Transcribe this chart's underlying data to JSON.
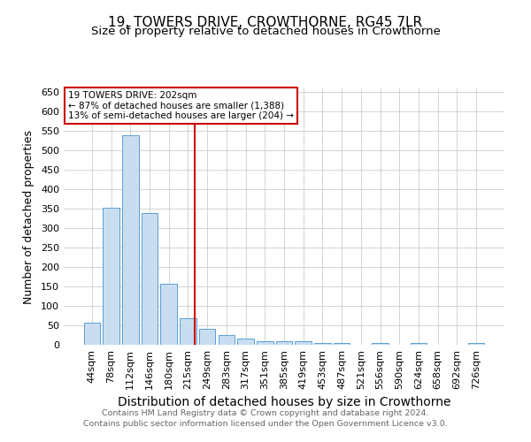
{
  "title": "19, TOWERS DRIVE, CROWTHORNE, RG45 7LR",
  "subtitle": "Size of property relative to detached houses in Crowthorne",
  "xlabel": "Distribution of detached houses by size in Crowthorne",
  "ylabel": "Number of detached properties",
  "bar_labels": [
    "44sqm",
    "78sqm",
    "112sqm",
    "146sqm",
    "180sqm",
    "215sqm",
    "249sqm",
    "283sqm",
    "317sqm",
    "351sqm",
    "385sqm",
    "419sqm",
    "453sqm",
    "487sqm",
    "521sqm",
    "556sqm",
    "590sqm",
    "624sqm",
    "658sqm",
    "692sqm",
    "726sqm"
  ],
  "bar_values": [
    58,
    352,
    540,
    338,
    157,
    68,
    41,
    24,
    17,
    8,
    8,
    10,
    5,
    4,
    0,
    4,
    0,
    5,
    0,
    0,
    5
  ],
  "bar_color": "#c9ddf0",
  "bar_edge_color": "#5a9fd4",
  "vline_color": "#cc0000",
  "vline_bin_index": 5,
  "ylim": [
    0,
    660
  ],
  "yticks": [
    0,
    50,
    100,
    150,
    200,
    250,
    300,
    350,
    400,
    450,
    500,
    550,
    600,
    650
  ],
  "annotation_text": "19 TOWERS DRIVE: 202sqm\n← 87% of detached houses are smaller (1,388)\n13% of semi-detached houses are larger (204) →",
  "annotation_box_color": "#ffffff",
  "annotation_box_edge": "#cc0000",
  "footer1": "Contains HM Land Registry data © Crown copyright and database right 2024.",
  "footer2": "Contains public sector information licensed under the Open Government Licence v3.0.",
  "background_color": "#ffffff",
  "grid_color": "#cccccc",
  "title_fontsize": 11,
  "subtitle_fontsize": 9.5,
  "xlabel_fontsize": 10,
  "ylabel_fontsize": 9,
  "tick_fontsize": 8,
  "annotation_fontsize": 7.5,
  "footer_fontsize": 6.8
}
